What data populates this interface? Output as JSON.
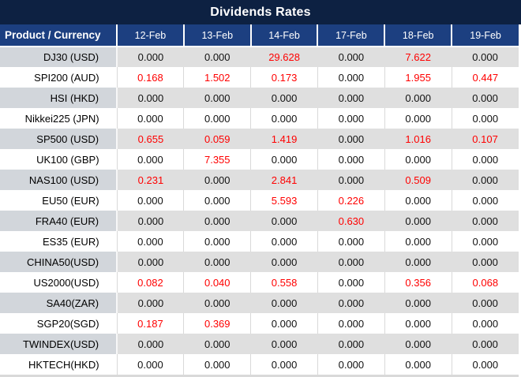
{
  "colors": {
    "title_bg": "#0d2142",
    "header_bg": "#1c3f80",
    "header_text": "#ffffff",
    "row_gray_label": "#d2d6db",
    "row_gray_data": "#dfdfdf",
    "grid_line": "#d9d9d9",
    "value_normal": "#111111",
    "value_highlight": "#ff0000"
  },
  "chart_data": {
    "type": "table",
    "title": "Dividends Rates",
    "columns": [
      "Product / Currency",
      "12-Feb",
      "13-Feb",
      "14-Feb",
      "17-Feb",
      "18-Feb",
      "19-Feb"
    ],
    "rows": [
      {
        "product": "DJ30 (USD)",
        "values": [
          "0.000",
          "0.000",
          "29.628",
          "0.000",
          "7.622",
          "0.000"
        ],
        "red_flags": [
          0,
          0,
          1,
          0,
          1,
          0
        ]
      },
      {
        "product": "SPI200 (AUD)",
        "values": [
          "0.168",
          "1.502",
          "0.173",
          "0.000",
          "1.955",
          "0.447"
        ],
        "red_flags": [
          1,
          1,
          1,
          0,
          1,
          1
        ]
      },
      {
        "product": "HSI (HKD)",
        "values": [
          "0.000",
          "0.000",
          "0.000",
          "0.000",
          "0.000",
          "0.000"
        ],
        "red_flags": [
          0,
          0,
          0,
          0,
          0,
          0
        ]
      },
      {
        "product": "Nikkei225 (JPN)",
        "values": [
          "0.000",
          "0.000",
          "0.000",
          "0.000",
          "0.000",
          "0.000"
        ],
        "red_flags": [
          0,
          0,
          0,
          0,
          0,
          0
        ]
      },
      {
        "product": "SP500 (USD)",
        "values": [
          "0.655",
          "0.059",
          "1.419",
          "0.000",
          "1.016",
          "0.107"
        ],
        "red_flags": [
          1,
          1,
          1,
          0,
          1,
          1
        ]
      },
      {
        "product": "UK100 (GBP)",
        "values": [
          "0.000",
          "7.355",
          "0.000",
          "0.000",
          "0.000",
          "0.000"
        ],
        "red_flags": [
          0,
          1,
          0,
          0,
          0,
          0
        ]
      },
      {
        "product": "NAS100 (USD)",
        "values": [
          "0.231",
          "0.000",
          "2.841",
          "0.000",
          "0.509",
          "0.000"
        ],
        "red_flags": [
          1,
          0,
          1,
          0,
          1,
          0
        ]
      },
      {
        "product": "EU50 (EUR)",
        "values": [
          "0.000",
          "0.000",
          "5.593",
          "0.226",
          "0.000",
          "0.000"
        ],
        "red_flags": [
          0,
          0,
          1,
          1,
          0,
          0
        ]
      },
      {
        "product": "FRA40 (EUR)",
        "values": [
          "0.000",
          "0.000",
          "0.000",
          "0.630",
          "0.000",
          "0.000"
        ],
        "red_flags": [
          0,
          0,
          0,
          1,
          0,
          0
        ]
      },
      {
        "product": "ES35 (EUR)",
        "values": [
          "0.000",
          "0.000",
          "0.000",
          "0.000",
          "0.000",
          "0.000"
        ],
        "red_flags": [
          0,
          0,
          0,
          0,
          0,
          0
        ]
      },
      {
        "product": "CHINA50(USD)",
        "values": [
          "0.000",
          "0.000",
          "0.000",
          "0.000",
          "0.000",
          "0.000"
        ],
        "red_flags": [
          0,
          0,
          0,
          0,
          0,
          0
        ]
      },
      {
        "product": "US2000(USD)",
        "values": [
          "0.082",
          "0.040",
          "0.558",
          "0.000",
          "0.356",
          "0.068"
        ],
        "red_flags": [
          1,
          1,
          1,
          0,
          1,
          1
        ]
      },
      {
        "product": "SA40(ZAR)",
        "values": [
          "0.000",
          "0.000",
          "0.000",
          "0.000",
          "0.000",
          "0.000"
        ],
        "red_flags": [
          0,
          0,
          0,
          0,
          0,
          0
        ]
      },
      {
        "product": "SGP20(SGD)",
        "values": [
          "0.187",
          "0.369",
          "0.000",
          "0.000",
          "0.000",
          "0.000"
        ],
        "red_flags": [
          1,
          1,
          0,
          0,
          0,
          0
        ]
      },
      {
        "product": "TWINDEX(USD)",
        "values": [
          "0.000",
          "0.000",
          "0.000",
          "0.000",
          "0.000",
          "0.000"
        ],
        "red_flags": [
          0,
          0,
          0,
          0,
          0,
          0
        ]
      },
      {
        "product": "HKTECH(HKD)",
        "values": [
          "0.000",
          "0.000",
          "0.000",
          "0.000",
          "0.000",
          "0.000"
        ],
        "red_flags": [
          0,
          0,
          0,
          0,
          0,
          0
        ]
      }
    ]
  }
}
